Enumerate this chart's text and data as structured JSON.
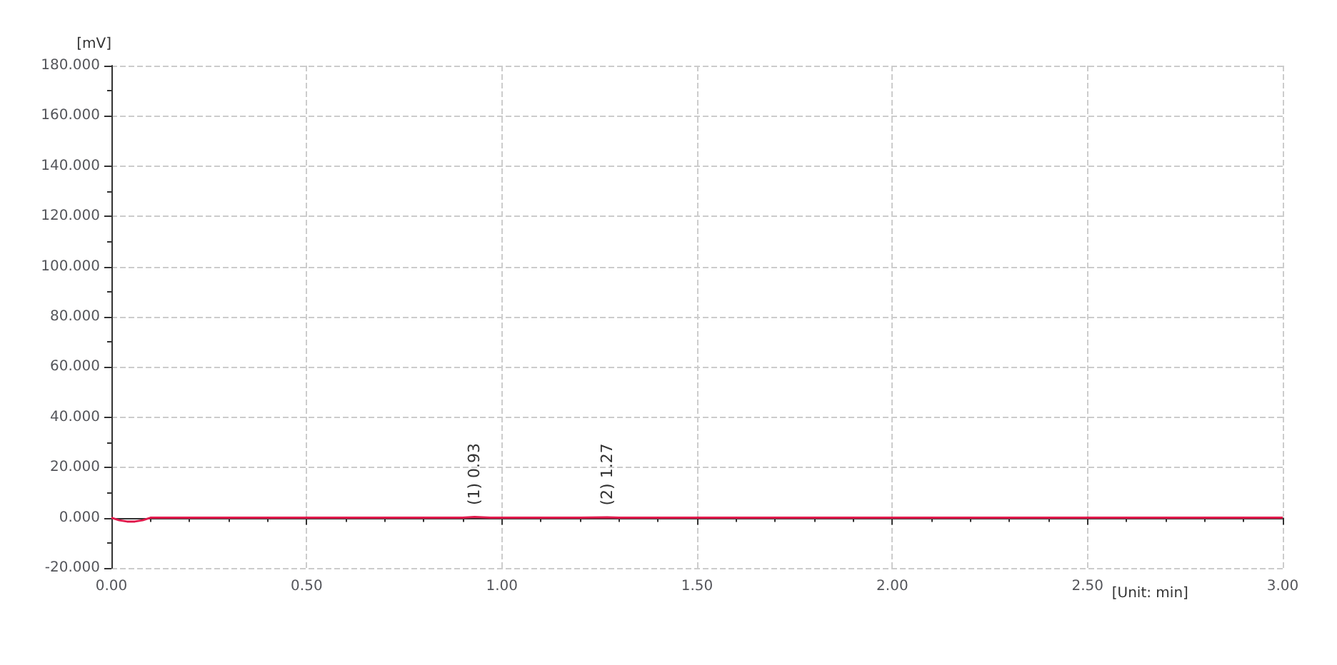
{
  "chart_data": {
    "type": "line",
    "ylabel": "[mV]",
    "xlabel": "[Unit: min]",
    "x": [
      0,
      0.02,
      0.04,
      0.06,
      0.08,
      0.1,
      0.3,
      0.5,
      0.8,
      0.9,
      0.93,
      0.97,
      1.0,
      1.2,
      1.27,
      1.3,
      1.5,
      2.0,
      2.5,
      3.0
    ],
    "series": [
      {
        "color": "#e0194b",
        "values": [
          0,
          -1,
          -1.5,
          -1.5,
          -1,
          0,
          0,
          0,
          0,
          0,
          0.3,
          0,
          0,
          0,
          0.2,
          0,
          0,
          0,
          0,
          0
        ]
      }
    ],
    "xlim": [
      0,
      3
    ],
    "xticks": [
      {
        "value": 0,
        "label": "0.00"
      },
      {
        "value": 0.5,
        "label": "0.50"
      },
      {
        "value": 1,
        "label": "1.00"
      },
      {
        "value": 1.5,
        "label": "1.50"
      },
      {
        "value": 2,
        "label": "2.00"
      },
      {
        "value": 2.5,
        "label": "2.50"
      },
      {
        "value": 3,
        "label": "3.00"
      }
    ],
    "ylim": [
      -20,
      180
    ],
    "yticks": [
      {
        "value": -20,
        "label": "-20.000"
      },
      {
        "value": 0,
        "label": "0.000"
      },
      {
        "value": 20,
        "label": "20.000"
      },
      {
        "value": 40,
        "label": "40.000"
      },
      {
        "value": 60,
        "label": "60.000"
      },
      {
        "value": 80,
        "label": "80.000"
      },
      {
        "value": 100,
        "label": "100.000"
      },
      {
        "value": 120,
        "label": "120.000"
      },
      {
        "value": 140,
        "label": "140.000"
      },
      {
        "value": 160,
        "label": "160.000"
      },
      {
        "value": 180,
        "label": "180.000"
      }
    ],
    "annotations": [
      {
        "text": "(1) 0.93",
        "x": 0.93,
        "y": 0.3
      },
      {
        "text": "(2) 1.27",
        "x": 1.27,
        "y": 0.2
      }
    ],
    "grid": true,
    "marker": "none",
    "line_style": "solid"
  }
}
